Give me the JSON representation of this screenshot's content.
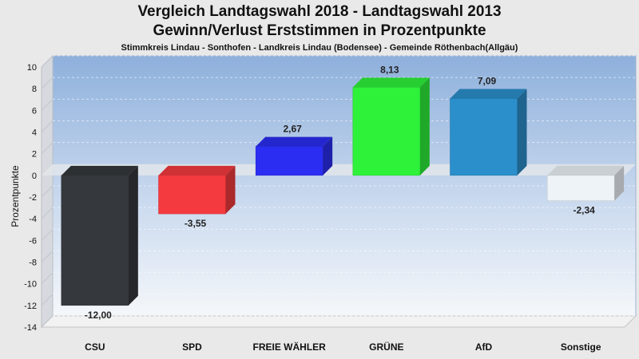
{
  "chart_data": {
    "type": "bar",
    "title": "Vergleich Landtagswahl 2018 - Landtagswahl 2013",
    "subtitle_line": "Gewinn/Verlust Erststimmen in Prozentpunkte",
    "caption": "Stimmkreis Lindau - Sonthofen - Landkreis Lindau (Bodensee) - Gemeinde Röthenbach(Allgäu)",
    "ylabel": "Prozentpunkte",
    "xlabel": "",
    "ylim": [
      -14,
      10
    ],
    "yticks": [
      10,
      8,
      6,
      4,
      2,
      0,
      -2,
      -4,
      -6,
      -8,
      -10,
      -12,
      -14
    ],
    "grid": true,
    "categories": [
      "CSU",
      "SPD",
      "FREIE WÄHLER",
      "GRÜNE",
      "AfD",
      "Sonstige"
    ],
    "values": [
      -12.0,
      -3.55,
      2.67,
      8.13,
      7.09,
      -2.34
    ],
    "value_labels": [
      "-12,00",
      "-3,55",
      "2,67",
      "8,13",
      "7,09",
      "-2,34"
    ],
    "colors": [
      "#35383c",
      "#f43a3e",
      "#2b2ef2",
      "#2ef23a",
      "#2b8fcc",
      "#eef3f8"
    ]
  }
}
